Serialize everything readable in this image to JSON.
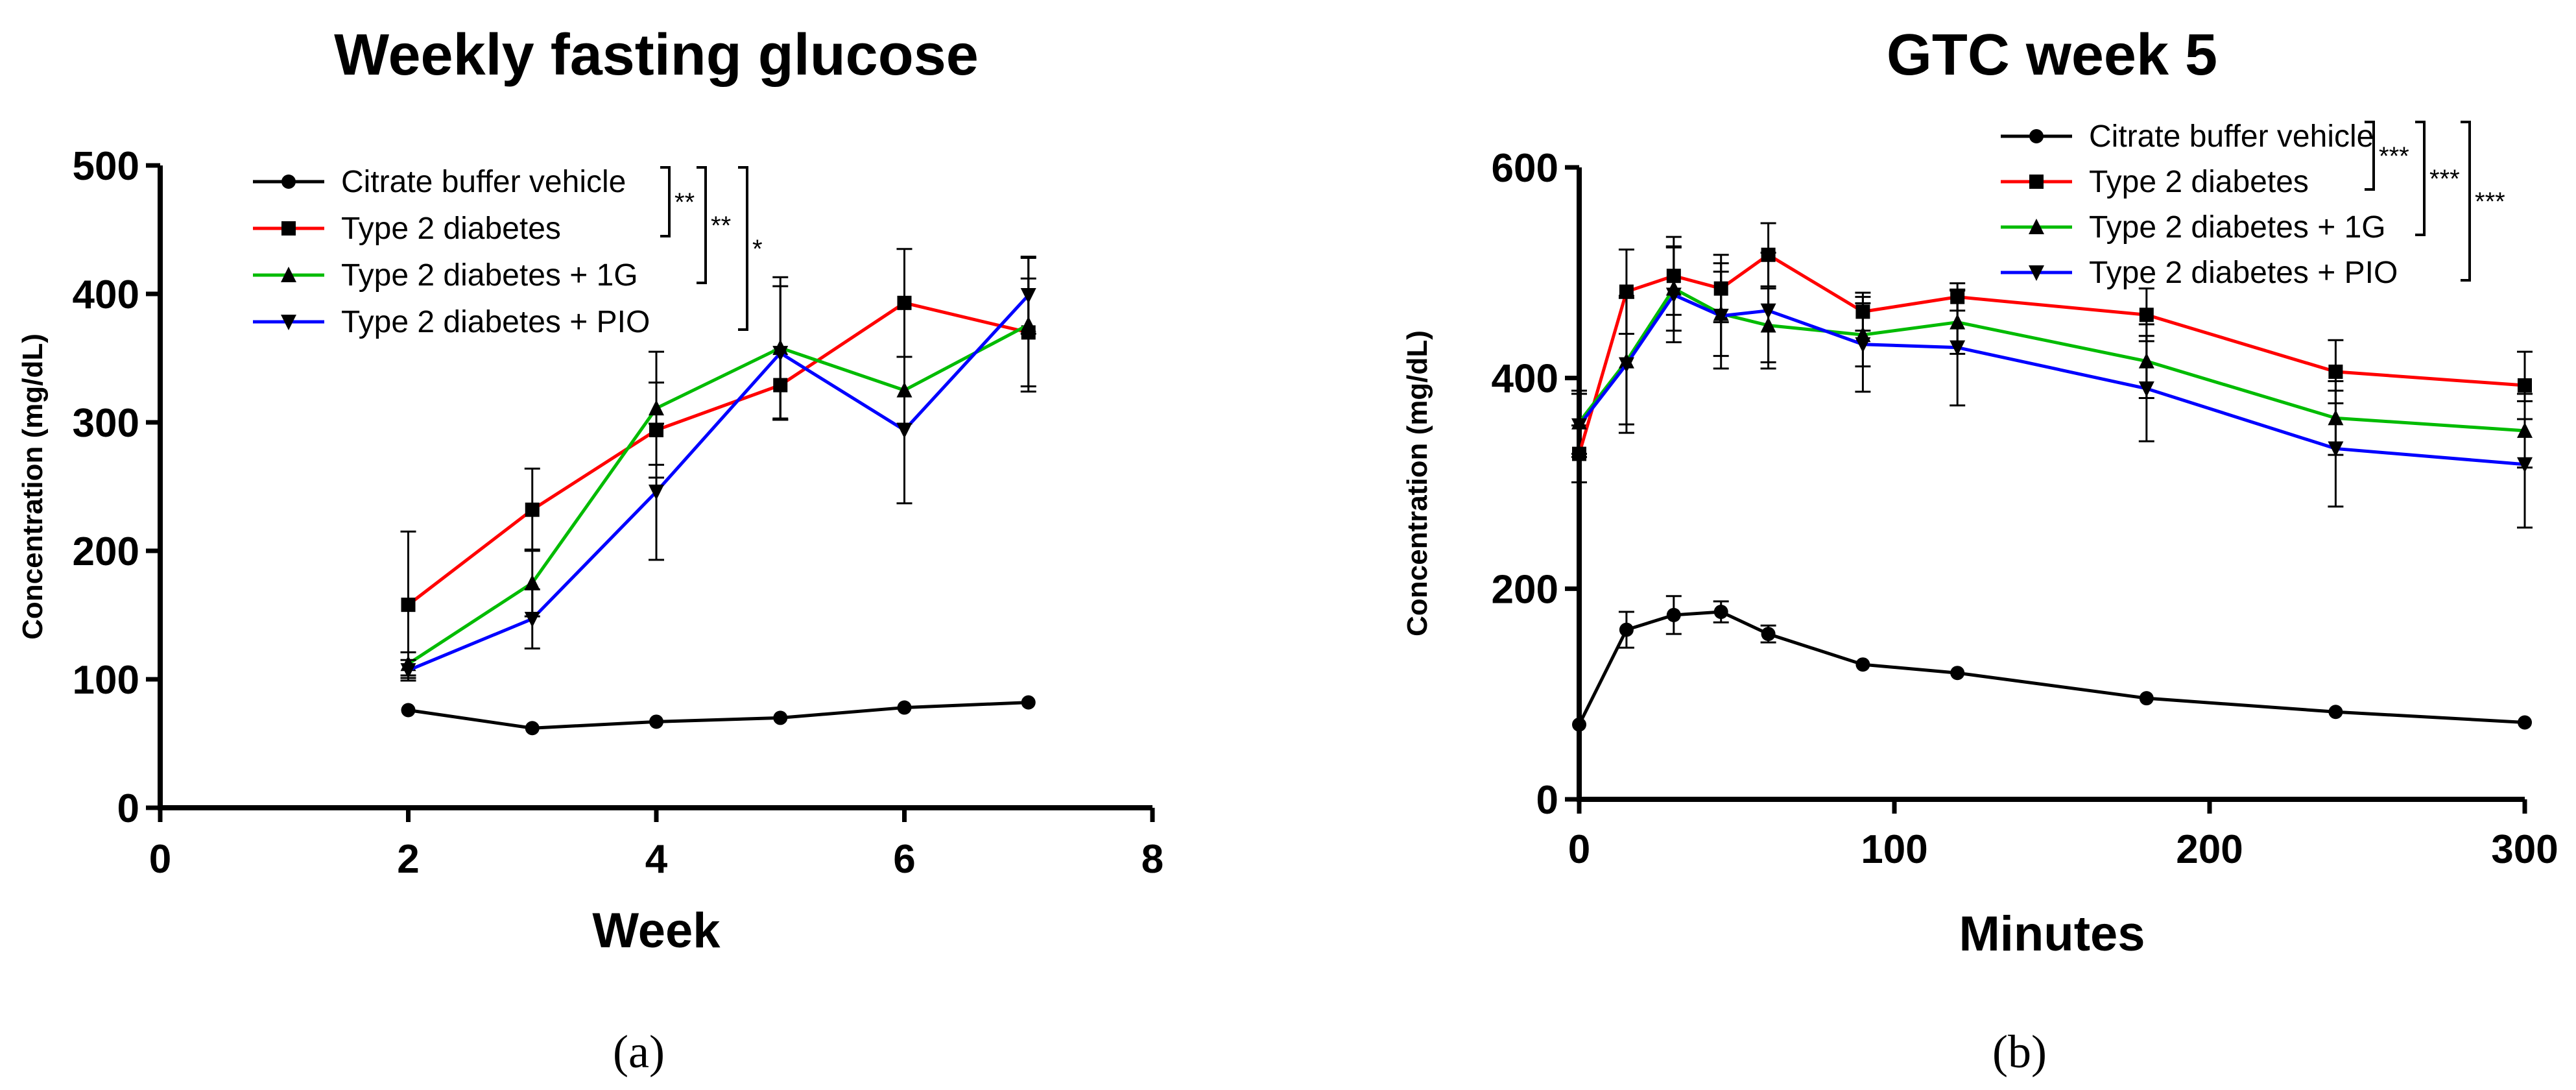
{
  "chart_data": [
    {
      "type": "line",
      "panel_label": "(a)",
      "title": "Weekly fasting glucose",
      "xlabel": "Week",
      "ylabel": "Concentration (mg/dL)",
      "xlim": [
        0,
        8
      ],
      "ylim": [
        0,
        500
      ],
      "xticks": [
        0,
        2,
        4,
        6,
        8
      ],
      "yticks": [
        0,
        100,
        200,
        300,
        400,
        500
      ],
      "legend_position": "top-left",
      "series": [
        {
          "name": "Citrate buffer vehicle",
          "color": "#000000",
          "marker": "circle",
          "x": [
            2,
            3,
            4,
            5,
            6,
            7
          ],
          "y": [
            76,
            62,
            67,
            70,
            78,
            82
          ],
          "err": [
            0,
            0,
            0,
            0,
            0,
            0
          ]
        },
        {
          "name": "Type 2 diabetes",
          "color": "#ff0000",
          "marker": "square",
          "x": [
            2,
            3,
            4,
            5,
            6,
            7
          ],
          "y": [
            158,
            232,
            294,
            329,
            393,
            370
          ],
          "err": [
            57,
            32,
            37,
            27,
            42,
            42
          ]
        },
        {
          "name": "Type 2 diabetes + 1G",
          "color": "#00bb00",
          "marker": "triangle-up",
          "x": [
            2,
            3,
            4,
            5,
            6,
            7
          ],
          "y": [
            112,
            175,
            311,
            358,
            325,
            376
          ],
          "err": [
            9,
            26,
            44,
            55,
            26,
            52
          ]
        },
        {
          "name": "Type 2 diabetes + PIO",
          "color": "#0000ff",
          "marker": "triangle-down",
          "x": [
            2,
            3,
            4,
            5,
            6,
            7
          ],
          "y": [
            107,
            147,
            246,
            354,
            294,
            399
          ],
          "err": [
            8,
            23,
            53,
            52,
            57,
            30
          ]
        }
      ],
      "significance": [
        "**",
        "**",
        "*"
      ]
    },
    {
      "type": "line",
      "panel_label": "(b)",
      "title": "GTC week 5",
      "xlabel": "Minutes",
      "ylabel": "Concentration (mg/dL)",
      "xlim": [
        0,
        300
      ],
      "ylim": [
        0,
        600
      ],
      "xticks": [
        0,
        100,
        200,
        300
      ],
      "yticks": [
        0,
        200,
        400,
        600
      ],
      "legend_position": "top-right",
      "series": [
        {
          "name": "Citrate buffer vehicle",
          "color": "#000000",
          "marker": "circle",
          "x": [
            0,
            15,
            30,
            45,
            60,
            90,
            120,
            180,
            240,
            300
          ],
          "y": [
            71,
            161,
            175,
            178,
            157,
            128,
            120,
            96,
            83,
            73
          ],
          "err": [
            0,
            17,
            18,
            10,
            8,
            0,
            0,
            0,
            0,
            0
          ]
        },
        {
          "name": "Type 2 diabetes",
          "color": "#ff0000",
          "marker": "square",
          "x": [
            0,
            15,
            30,
            45,
            60,
            90,
            120,
            180,
            240,
            300
          ],
          "y": [
            328,
            482,
            497,
            485,
            517,
            463,
            477,
            460,
            406,
            393
          ],
          "err": [
            27,
            40,
            37,
            32,
            30,
            18,
            13,
            25,
            30,
            32
          ]
        },
        {
          "name": "Type 2 diabetes + 1G",
          "color": "#00bb00",
          "marker": "triangle-up",
          "x": [
            0,
            15,
            30,
            45,
            60,
            90,
            120,
            180,
            240,
            300
          ],
          "y": [
            358,
            416,
            485,
            461,
            450,
            441,
            453,
            416,
            362,
            350
          ],
          "err": [
            30,
            60,
            40,
            40,
            35,
            30,
            30,
            35,
            35,
            35
          ]
        },
        {
          "name": "Type 2 diabetes + PIO",
          "color": "#0000ff",
          "marker": "triangle-down",
          "x": [
            0,
            15,
            30,
            45,
            60,
            90,
            120,
            180,
            240,
            300
          ],
          "y": [
            355,
            413,
            479,
            459,
            464,
            432,
            429,
            390,
            333,
            318
          ],
          "err": [
            30,
            65,
            45,
            50,
            55,
            45,
            55,
            50,
            55,
            60
          ]
        }
      ],
      "significance": [
        "***",
        "***",
        "***"
      ]
    }
  ]
}
